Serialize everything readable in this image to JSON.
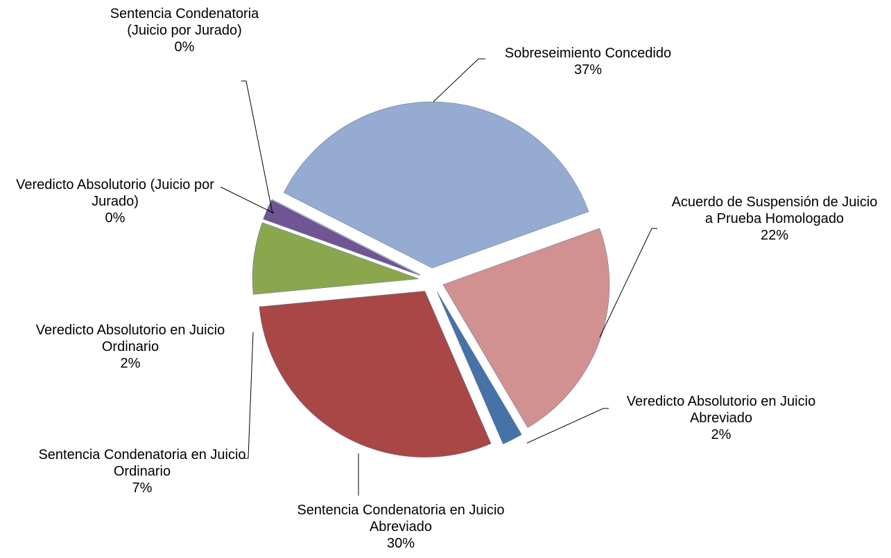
{
  "chart_data": {
    "type": "pie",
    "categories": [
      "Sobreseimiento Concedido",
      "Acuerdo de Suspensión de Juicio a Prueba Homologado",
      "Veredicto Absolutorio en Juicio Abreviado",
      "Sentencia Condenatoria en Juicio Abreviado",
      "Sentencia Condenatoria en Juicio Ordinario",
      "Veredicto Absolutorio en Juicio Ordinario",
      "Veredicto Absolutorio (Juicio por Jurado)",
      "Sentencia Condenatoria (Juicio por Jurado)"
    ],
    "values": [
      37,
      22,
      2,
      30,
      7,
      2,
      0,
      0
    ],
    "value_labels": [
      "37%",
      "22%",
      "2%",
      "30%",
      "7%",
      "2%",
      "0%",
      "0%"
    ],
    "colors": [
      "#95abd1",
      "#d19190",
      "#4672a8",
      "#a84745",
      "#8aa74e",
      "#6f5593",
      "#4aa0bc",
      "#e38a33"
    ]
  }
}
